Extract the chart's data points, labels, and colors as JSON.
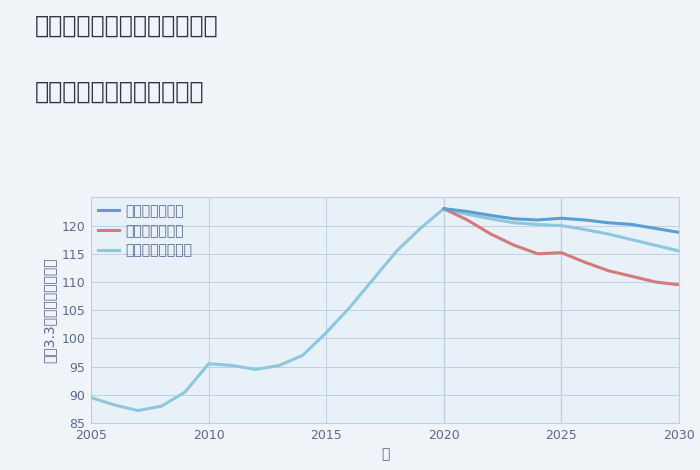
{
  "title_line1": "兵庫県姫路市大津区天神町の",
  "title_line2": "中古マンションの価格推移",
  "xlabel": "年",
  "ylabel": "平（3.3㎡）単価（万円）",
  "background_color": "#f0f4f8",
  "plot_bg_color": "#e8f0f8",
  "grid_color": "#c0d0e4",
  "legend_labels": [
    "グッドシナリオ",
    "バッドシナリオ",
    "ノーマルシナリオ"
  ],
  "line_colors_good": "#5a9fd4",
  "line_colors_bad": "#d47a7a",
  "line_colors_normal": "#8ec8dc",
  "line_colors_hist": "#8ec8dc",
  "line_width": 2.2,
  "xlim": [
    2005,
    2030
  ],
  "ylim": [
    85,
    125
  ],
  "yticks": [
    85,
    90,
    95,
    100,
    105,
    110,
    115,
    120
  ],
  "xticks": [
    2005,
    2010,
    2015,
    2020,
    2025,
    2030
  ],
  "historical_years": [
    2005,
    2006,
    2007,
    2008,
    2009,
    2010,
    2011,
    2012,
    2013,
    2014,
    2015,
    2016,
    2017,
    2018,
    2019,
    2020
  ],
  "historical_values": [
    89.5,
    88.2,
    87.2,
    88.0,
    90.5,
    95.5,
    95.2,
    94.5,
    95.2,
    97.0,
    101.0,
    105.5,
    110.5,
    115.5,
    119.5,
    123.0
  ],
  "good_years": [
    2020,
    2021,
    2022,
    2023,
    2024,
    2025,
    2026,
    2027,
    2028,
    2029,
    2030
  ],
  "good_values": [
    123.0,
    122.5,
    121.8,
    121.2,
    121.0,
    121.3,
    121.0,
    120.5,
    120.2,
    119.5,
    118.8
  ],
  "bad_years": [
    2020,
    2021,
    2022,
    2023,
    2024,
    2025,
    2026,
    2027,
    2028,
    2029,
    2030
  ],
  "bad_values": [
    123.0,
    121.0,
    118.5,
    116.5,
    115.0,
    115.2,
    113.5,
    112.0,
    111.0,
    110.0,
    109.5
  ],
  "normal_years": [
    2020,
    2021,
    2022,
    2023,
    2024,
    2025,
    2026,
    2027,
    2028,
    2029,
    2030
  ],
  "normal_values": [
    123.0,
    122.0,
    121.2,
    120.5,
    120.2,
    120.0,
    119.3,
    118.5,
    117.5,
    116.5,
    115.5
  ],
  "vline_years": [
    2020,
    2025
  ],
  "title_color": "#333344",
  "tick_color": "#5a6a8a",
  "title_fontsize": 17,
  "label_fontsize": 10,
  "tick_fontsize": 9,
  "legend_fontsize": 10
}
